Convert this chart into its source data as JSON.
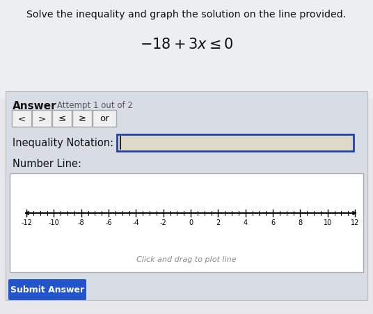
{
  "title": "Solve the inequality and graph the solution on the line provided.",
  "equation": "$-18+3x\\leq 0$",
  "answer_label": "Answer",
  "attempt_label": "Attempt 1 out of 2",
  "buttons": [
    "<",
    ">",
    "≤",
    "≥",
    "or"
  ],
  "inequality_label": "Inequality Notation:",
  "number_line_label": "Number Line:",
  "ticks": [
    -12,
    -10,
    -8,
    -6,
    -4,
    -2,
    0,
    2,
    4,
    6,
    8,
    10,
    12
  ],
  "click_drag_text": "Click and drag to plot line",
  "submit_text": "Submit Answer",
  "top_bg": "#e8e8ec",
  "panel_bg": "#d8dce4",
  "nl_box_bg": "#ffffff",
  "input_fill": "#ddd8c8",
  "input_border": "#2244aa",
  "btn_border": "#aaaaaa",
  "btn_fill": "#f0f0f0",
  "submit_bg": "#2255cc",
  "submit_fg": "#ffffff",
  "text_dark": "#111111",
  "text_gray": "#888888"
}
